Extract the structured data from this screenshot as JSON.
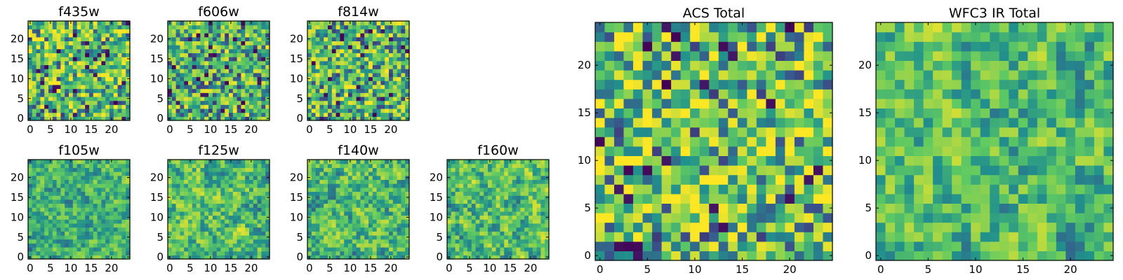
{
  "colormap": "viridis",
  "colors": {
    "viridis": [
      "#440154",
      "#3b528b",
      "#21918c",
      "#5ec962",
      "#fde725"
    ],
    "frame": "#000000"
  },
  "chart_data": [
    {
      "type": "heatmap",
      "title": "f435w",
      "grid": [
        25,
        25
      ],
      "xlim": [
        -0.5,
        24.5
      ],
      "ylim": [
        -0.5,
        24.5
      ],
      "xticks": [
        "0",
        "5",
        "10",
        "15",
        "20"
      ],
      "yticks": [
        "0",
        "5",
        "10",
        "15",
        "20"
      ],
      "seed": 11,
      "smooth": 0,
      "bias": 0.62
    },
    {
      "type": "heatmap",
      "title": "f606w",
      "grid": [
        25,
        25
      ],
      "xlim": [
        -0.5,
        24.5
      ],
      "ylim": [
        -0.5,
        24.5
      ],
      "xticks": [
        "0",
        "5",
        "10",
        "15",
        "20"
      ],
      "yticks": [
        "0",
        "5",
        "10",
        "15",
        "20"
      ],
      "seed": 23,
      "smooth": 0,
      "bias": 0.58
    },
    {
      "type": "heatmap",
      "title": "f814w",
      "grid": [
        25,
        25
      ],
      "xlim": [
        -0.5,
        24.5
      ],
      "ylim": [
        -0.5,
        24.5
      ],
      "xticks": [
        "0",
        "5",
        "10",
        "15",
        "20"
      ],
      "yticks": [
        "0",
        "5",
        "10",
        "15",
        "20"
      ],
      "seed": 37,
      "smooth": 0,
      "bias": 0.6
    },
    {
      "type": "heatmap",
      "title": "f105w",
      "grid": [
        25,
        25
      ],
      "xlim": [
        -0.5,
        24.5
      ],
      "ylim": [
        -0.5,
        24.5
      ],
      "xticks": [
        "0",
        "5",
        "10",
        "15",
        "20"
      ],
      "yticks": [
        "0",
        "5",
        "10",
        "15",
        "20"
      ],
      "seed": 41,
      "smooth": 1,
      "bias": 0.55
    },
    {
      "type": "heatmap",
      "title": "f125w",
      "grid": [
        25,
        25
      ],
      "xlim": [
        -0.5,
        24.5
      ],
      "ylim": [
        -0.5,
        24.5
      ],
      "xticks": [
        "0",
        "5",
        "10",
        "15",
        "20"
      ],
      "yticks": [
        "0",
        "5",
        "10",
        "15",
        "20"
      ],
      "seed": 53,
      "smooth": 1,
      "bias": 0.63
    },
    {
      "type": "heatmap",
      "title": "f140w",
      "grid": [
        25,
        25
      ],
      "xlim": [
        -0.5,
        24.5
      ],
      "ylim": [
        -0.5,
        24.5
      ],
      "xticks": [
        "0",
        "5",
        "10",
        "15",
        "20"
      ],
      "yticks": [
        "0",
        "5",
        "10",
        "15",
        "20"
      ],
      "seed": 67,
      "smooth": 1,
      "bias": 0.62
    },
    {
      "type": "heatmap",
      "title": "f160w",
      "grid": [
        25,
        25
      ],
      "xlim": [
        -0.5,
        24.5
      ],
      "ylim": [
        -0.5,
        24.5
      ],
      "xticks": [
        "0",
        "5",
        "10",
        "15",
        "20"
      ],
      "yticks": [
        "0",
        "5",
        "10",
        "15",
        "20"
      ],
      "seed": 79,
      "smooth": 1,
      "bias": 0.64
    },
    {
      "type": "heatmap",
      "title": "ACS Total",
      "grid": [
        25,
        25
      ],
      "xlim": [
        -0.5,
        24.5
      ],
      "ylim": [
        -0.5,
        24.5
      ],
      "xticks": [
        "0",
        "5",
        "10",
        "15",
        "20"
      ],
      "yticks": [
        "0",
        "5",
        "10",
        "15",
        "20"
      ],
      "seed": 97,
      "smooth": 0,
      "bias": 0.64
    },
    {
      "type": "heatmap",
      "title": "WFC3 IR Total",
      "grid": [
        25,
        25
      ],
      "xlim": [
        -0.5,
        24.5
      ],
      "ylim": [
        -0.5,
        24.5
      ],
      "xticks": [
        "0",
        "5",
        "10",
        "15",
        "20"
      ],
      "yticks": [
        "0",
        "5",
        "10",
        "15",
        "20"
      ],
      "seed": 131,
      "smooth": 1,
      "bias": 0.62
    }
  ]
}
